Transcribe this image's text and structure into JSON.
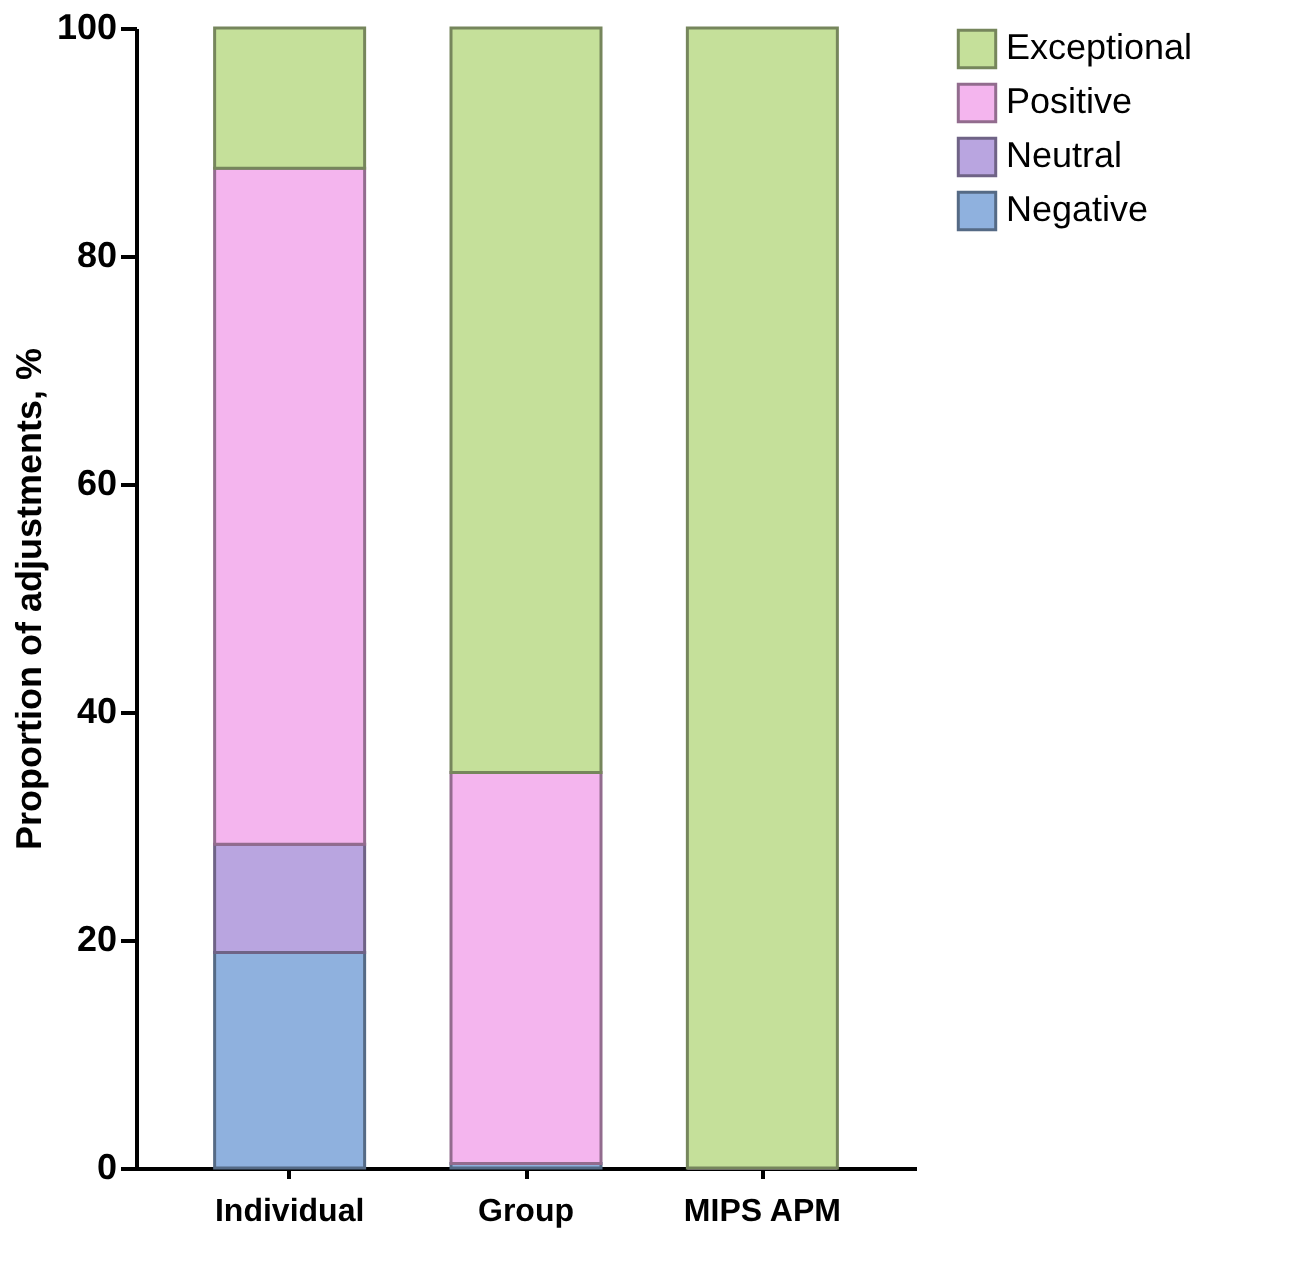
{
  "chart_data": {
    "type": "bar",
    "stacked": true,
    "ylabel": "Proportion of  adjustments, %",
    "categories": [
      "Individual",
      "Group",
      "MIPS APM"
    ],
    "series": [
      {
        "name": "Negative",
        "color": "#8fb1de",
        "values": [
          18.9,
          0.4,
          0
        ]
      },
      {
        "name": "Neutral",
        "color": "#b9a5e0",
        "values": [
          9.5,
          0,
          0
        ]
      },
      {
        "name": "Positive",
        "color": "#f4b5ee",
        "values": [
          59.3,
          34.3,
          0
        ]
      },
      {
        "name": "Exceptional",
        "color": "#c5e09a",
        "values": [
          12.3,
          65.3,
          100
        ]
      }
    ],
    "ylim": [
      0,
      100
    ],
    "yticks": [
      0,
      20,
      40,
      60,
      80,
      100
    ],
    "grid": false,
    "legend": "right"
  }
}
